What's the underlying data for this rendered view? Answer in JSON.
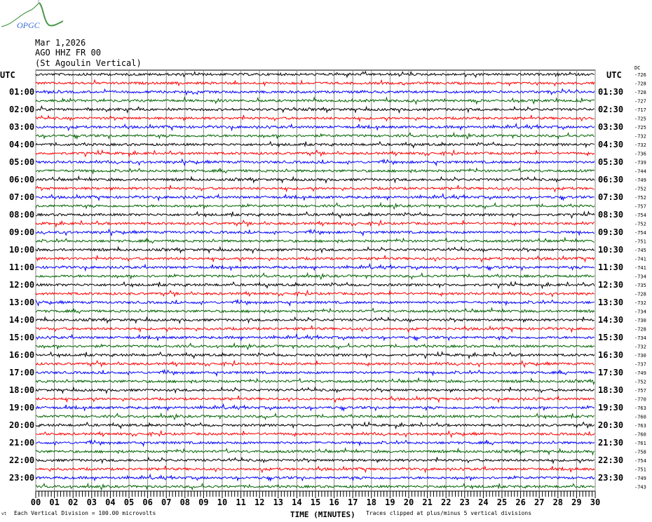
{
  "logo": {
    "text": "OPGC",
    "colors": {
      "mountain": "#2e8b2e",
      "text": "#3a6fd8"
    }
  },
  "header": {
    "date": "Mar 1,2026",
    "station": "AGO HHZ FR 00",
    "description": "(St Agoulin Vertical)"
  },
  "footer": {
    "scale_note": "Each Vertical Division =  100.00 microvolts",
    "clip_note": "Traces clipped at plus/minus 5 vertical divisions",
    "corner_mark": "vt"
  },
  "chart_data": {
    "type": "line",
    "subtype": "helicorder",
    "xlabel": "TIME (MINUTES)",
    "x_ticks": [
      "00",
      "01",
      "02",
      "03",
      "04",
      "05",
      "06",
      "07",
      "08",
      "09",
      "10",
      "11",
      "12",
      "13",
      "14",
      "15",
      "16",
      "17",
      "18",
      "19",
      "20",
      "21",
      "22",
      "23",
      "24",
      "25",
      "26",
      "27",
      "28",
      "29",
      "30"
    ],
    "xlim": [
      0,
      30
    ],
    "grid": "vertical lines every minute",
    "left_header": "UTC",
    "right_header": "UTC",
    "dc_header": "DC",
    "left_labels": [
      "01:00",
      "02:00",
      "03:00",
      "04:00",
      "05:00",
      "06:00",
      "07:00",
      "08:00",
      "09:00",
      "10:00",
      "11:00",
      "12:00",
      "13:00",
      "14:00",
      "15:00",
      "16:00",
      "17:00",
      "18:00",
      "19:00",
      "20:00",
      "21:00",
      "22:00",
      "23:00"
    ],
    "right_labels": [
      "01:30",
      "02:30",
      "03:30",
      "04:30",
      "05:30",
      "06:30",
      "07:30",
      "08:30",
      "09:30",
      "10:30",
      "11:30",
      "12:30",
      "13:30",
      "14:30",
      "15:30",
      "16:30",
      "17:30",
      "18:30",
      "19:30",
      "20:30",
      "21:30",
      "22:30",
      "23:30"
    ],
    "trace_colors": [
      "#000000",
      "#ff0000",
      "#0000ff",
      "#006400"
    ],
    "trace_count": 48,
    "dc_offsets": [
      "-726",
      "-728",
      "-728",
      "-727",
      "-717",
      "-725",
      "-725",
      "-732",
      "-732",
      "-736",
      "-739",
      "-744",
      "-749",
      "-752",
      "-752",
      "-757",
      "-754",
      "-752",
      "-754",
      "-751",
      "-745",
      "-741",
      "-741",
      "-734",
      "-735",
      "-728",
      "-732",
      "-734",
      "-730",
      "-728",
      "-734",
      "-732",
      "-730",
      "-737",
      "-749",
      "-752",
      "-757",
      "-770",
      "-763",
      "-760",
      "-763",
      "-760",
      "-761",
      "-758",
      "-754",
      "-751",
      "-749",
      "-743"
    ]
  }
}
